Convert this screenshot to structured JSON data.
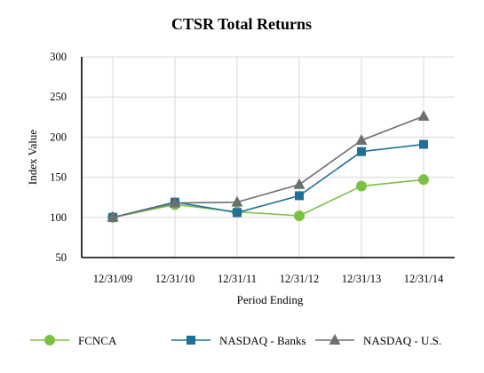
{
  "chart_data": {
    "type": "line",
    "title": "CTSR Total Returns",
    "xlabel": "Period Ending",
    "ylabel": "Index Value",
    "categories": [
      "12/31/09",
      "12/31/10",
      "12/31/11",
      "12/31/12",
      "12/31/13",
      "12/31/14"
    ],
    "ylim": [
      50,
      300
    ],
    "yticks": [
      50,
      100,
      150,
      200,
      250,
      300
    ],
    "grid": true,
    "legend_position": "bottom",
    "series": [
      {
        "name": "FCNCA",
        "values": [
          100,
          116,
          107,
          102,
          139,
          147
        ],
        "color": "#7ac143",
        "marker": "circle"
      },
      {
        "name": "NASDAQ - Banks",
        "values": [
          100,
          119,
          106,
          127,
          182,
          191
        ],
        "color": "#1f6f99",
        "marker": "square"
      },
      {
        "name": "NASDAQ - U.S.",
        "values": [
          100,
          118,
          119,
          141,
          196,
          226
        ],
        "color": "#6d6e71",
        "marker": "triangle"
      }
    ]
  }
}
